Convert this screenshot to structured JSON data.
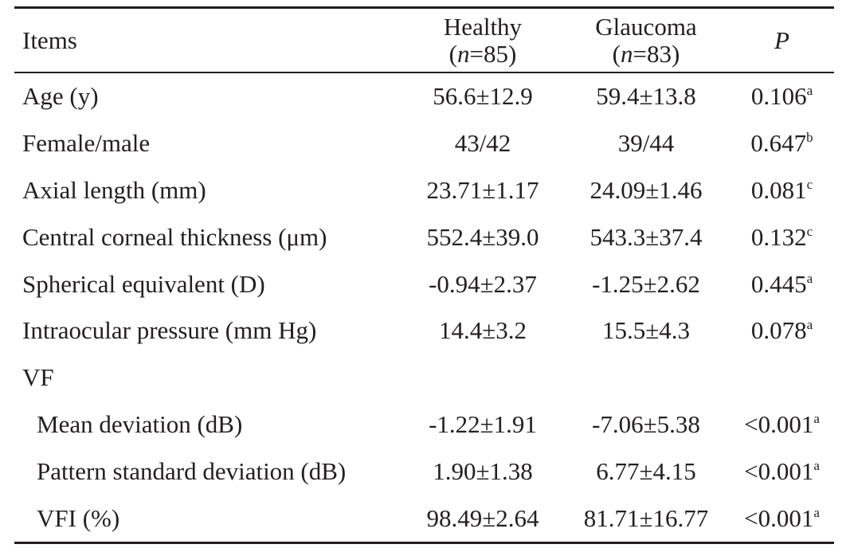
{
  "header": {
    "items": "Items",
    "healthy_label": "Healthy",
    "healthy_n_prefix": "(",
    "healthy_n_var": "n",
    "healthy_n_value": "=85)",
    "glaucoma_label": "Glaucoma",
    "glaucoma_n_prefix": "(",
    "glaucoma_n_var": "n",
    "glaucoma_n_value": "=83)",
    "p_label": "P"
  },
  "rows": [
    {
      "item": "Age (y)",
      "healthy": "56.6±12.9",
      "glaucoma": "59.4±13.8",
      "p": "0.106",
      "sup": "a"
    },
    {
      "item": "Female/male",
      "healthy": "43/42",
      "glaucoma": "39/44",
      "p": "0.647",
      "sup": "b"
    },
    {
      "item": "Axial length (mm)",
      "healthy": "23.71±1.17",
      "glaucoma": "24.09±1.46",
      "p": "0.081",
      "sup": "c"
    },
    {
      "item": "Central corneal thickness (μm)",
      "healthy": "552.4±39.0",
      "glaucoma": "543.3±37.4",
      "p": "0.132",
      "sup": "c"
    },
    {
      "item": "Spherical equivalent (D)",
      "healthy": "-0.94±2.37",
      "glaucoma": "-1.25±2.62",
      "p": "0.445",
      "sup": "a"
    },
    {
      "item": "Intraocular pressure (mm Hg)",
      "healthy": "14.4±3.2",
      "glaucoma": "15.5±4.3",
      "p": "0.078",
      "sup": "a"
    },
    {
      "item": "VF",
      "healthy": "",
      "glaucoma": "",
      "p": "",
      "sup": ""
    },
    {
      "item": "Mean deviation (dB)",
      "healthy": "-1.22±1.91",
      "glaucoma": "-7.06±5.38",
      "p": "<0.001",
      "sup": "a"
    },
    {
      "item": "Pattern standard deviation (dB)",
      "healthy": "1.90±1.38",
      "glaucoma": "6.77±4.15",
      "p": "<0.001",
      "sup": "a"
    },
    {
      "item": "VFI (%)",
      "healthy": "98.49±2.64",
      "glaucoma": "81.71±16.77",
      "p": "<0.001",
      "sup": "a"
    }
  ]
}
